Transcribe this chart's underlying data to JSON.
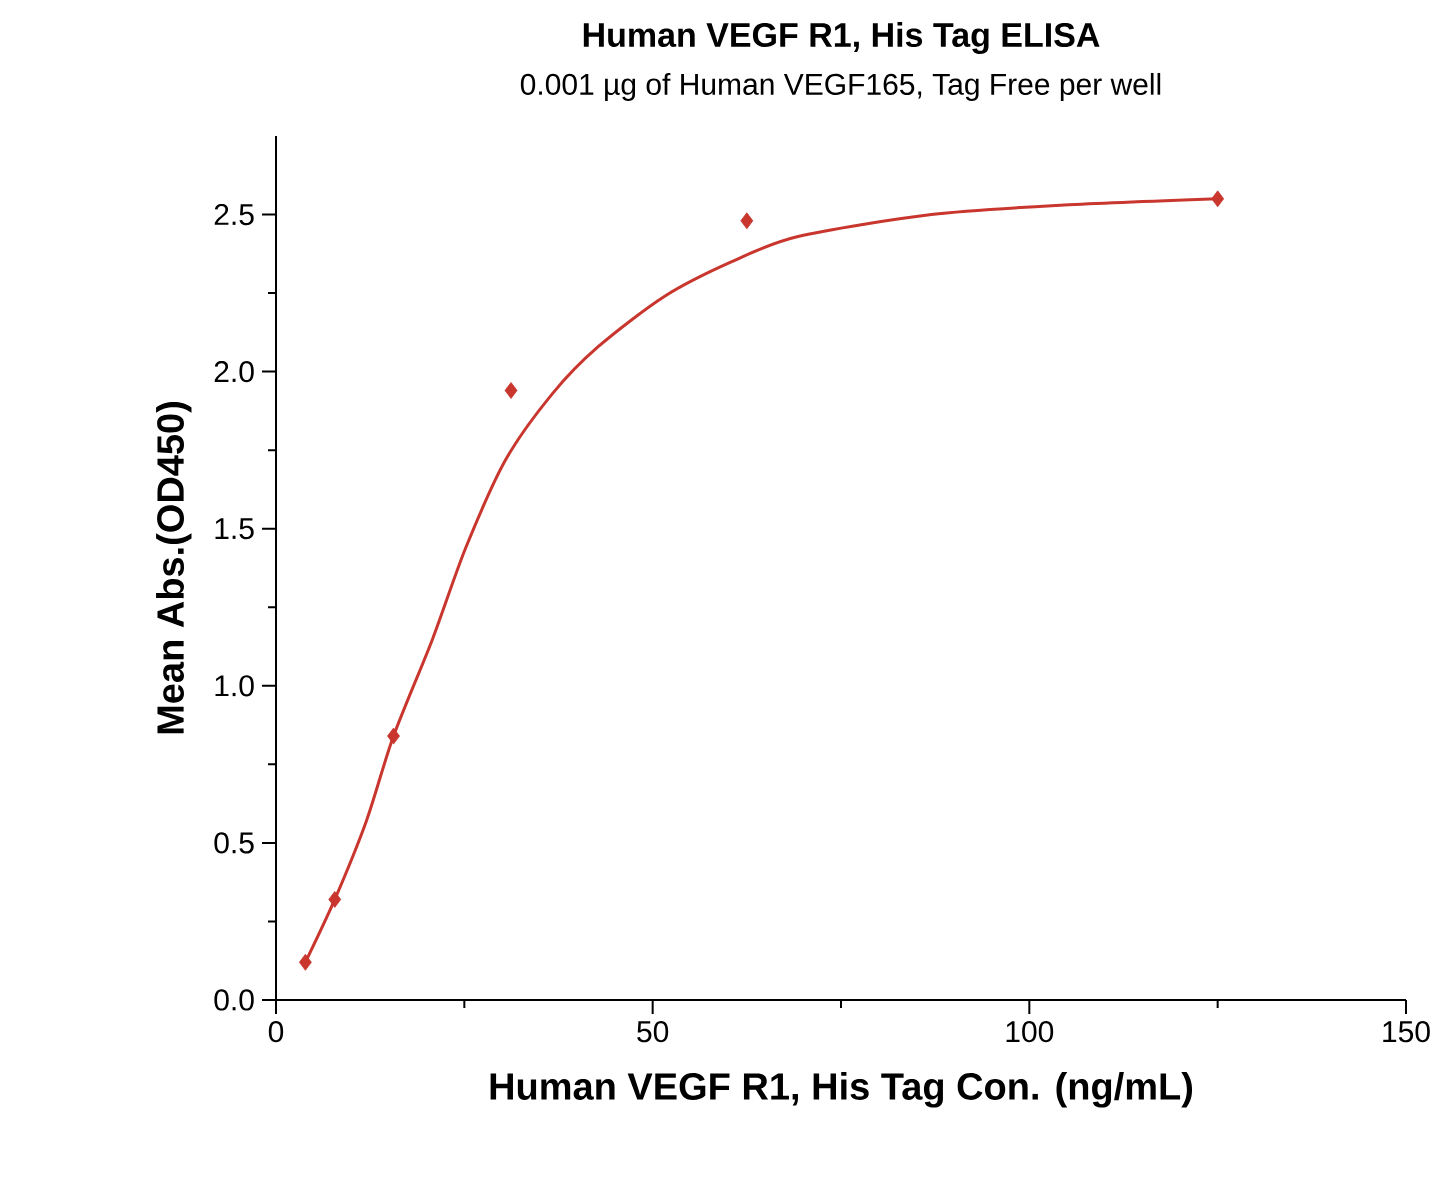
{
  "chart_data": {
    "type": "scatter",
    "title": "Human VEGF R1, His Tag ELISA",
    "subtitle": "0.001 µg of Human VEGF165, Tag Free per well",
    "xlabel": "Human VEGF R1, His Tag Con. (ng/mL)",
    "ylabel": "Mean Abs.(OD450)",
    "xlim": [
      0,
      150
    ],
    "xticks": [
      0,
      50,
      100,
      150
    ],
    "ylim": [
      0,
      2.75
    ],
    "yticks": [
      {
        "value": 0,
        "label": "0.0"
      },
      0.5,
      {
        "value": 1,
        "label": "1.0"
      },
      1.5,
      {
        "value": 2,
        "label": "2.0"
      },
      2.5
    ],
    "grid": false,
    "series": [
      {
        "color": "#c8362e",
        "marker": "diamond",
        "x": [
          3.9,
          7.8,
          15.6,
          31.2,
          62.5,
          125
        ],
        "values": [
          0.12,
          0.32,
          0.84,
          1.94,
          2.48,
          2.55
        ]
      },
      {
        "type": "line",
        "color": "#c8362e",
        "marker": "none",
        "line_style": "solid",
        "x": [
          3.9,
          7.8,
          12,
          15.6,
          20.8,
          25.2,
          30.5,
          36.7,
          42.8,
          51.6,
          60.5,
          69.3,
          87,
          104.6,
          125
        ],
        "values": [
          0.12,
          0.32,
          0.57,
          0.84,
          1.15,
          1.44,
          1.72,
          1.93,
          2.08,
          2.24,
          2.35,
          2.43,
          2.5,
          2.53,
          2.55
        ]
      }
    ]
  }
}
